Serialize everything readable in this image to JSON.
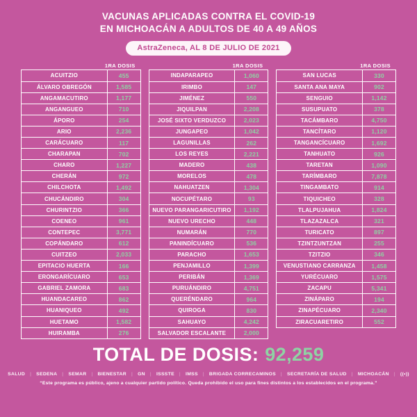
{
  "header": {
    "title_line1_normal": "VACUNAS APLICADAS ",
    "title_line1_strong": "CONTRA EL COVID-19",
    "title_line2": "EN MICHOACÁN A ADULTOS DE 40 A 49 AÑOS",
    "badge": "AstraZeneca, AL 8 DE JULIO DE 2021"
  },
  "columns": [
    {
      "dose_label": "1RA DOSIS",
      "rows": [
        {
          "name": "ACUITZIO",
          "value": "455"
        },
        {
          "name": "ÁLVARO OBREGÓN",
          "value": "1,585"
        },
        {
          "name": "ANGAMACUTIRO",
          "value": "1,177"
        },
        {
          "name": "ANGANGUEO",
          "value": "710"
        },
        {
          "name": "ÁPORO",
          "value": "254"
        },
        {
          "name": "ARIO",
          "value": "2,236"
        },
        {
          "name": "CARÁCUARO",
          "value": "117"
        },
        {
          "name": "CHARAPAN",
          "value": "702"
        },
        {
          "name": "CHARO",
          "value": "1,227"
        },
        {
          "name": "CHERÁN",
          "value": "972"
        },
        {
          "name": "CHILCHOTA",
          "value": "1,492"
        },
        {
          "name": "CHUCÁNDIRO",
          "value": "304"
        },
        {
          "name": "CHURINTZIO",
          "value": "366"
        },
        {
          "name": "COENEO",
          "value": "961"
        },
        {
          "name": "CONTEPEC",
          "value": "3,771"
        },
        {
          "name": "COPÁNDARO",
          "value": "612"
        },
        {
          "name": "CUITZEO",
          "value": "2,033"
        },
        {
          "name": "EPITACIO HUERTA",
          "value": "166"
        },
        {
          "name": "ERONGARÍCUARO",
          "value": "653"
        },
        {
          "name": "GABRIEL ZAMORA",
          "value": "683"
        },
        {
          "name": "HUANDACAREO",
          "value": "862"
        },
        {
          "name": "HUANIQUEO",
          "value": "492"
        },
        {
          "name": "HUETAMO",
          "value": "1,582"
        },
        {
          "name": "HUIRAMBA",
          "value": "276"
        }
      ]
    },
    {
      "dose_label": "1RA DOSIS",
      "rows": [
        {
          "name": "INDAPARAPEO",
          "value": "1,060"
        },
        {
          "name": "IRIMBO",
          "value": "147"
        },
        {
          "name": "JIMÉNEZ",
          "value": "550"
        },
        {
          "name": "JIQUILPAN",
          "value": "2,208"
        },
        {
          "name": "JOSÉ SIXTO VERDUZCO",
          "value": "2,023"
        },
        {
          "name": "JUNGAPEO",
          "value": "1,042"
        },
        {
          "name": "LAGUNILLAS",
          "value": "262"
        },
        {
          "name": "LOS REYES",
          "value": "2,221"
        },
        {
          "name": "MADERO",
          "value": "438"
        },
        {
          "name": "MORELOS",
          "value": "478"
        },
        {
          "name": "NAHUATZEN",
          "value": "1,304"
        },
        {
          "name": "NOCUPÉTARO",
          "value": "93"
        },
        {
          "name": "NUEVO PARANGARICUTIRO",
          "value": "1,192"
        },
        {
          "name": "NUEVO URECHO",
          "value": "448"
        },
        {
          "name": "NUMARÁN",
          "value": "770"
        },
        {
          "name": "PANINDÍCUARO",
          "value": "536"
        },
        {
          "name": "PARACHO",
          "value": "1,653"
        },
        {
          "name": "PENJAMILLO",
          "value": "1,399"
        },
        {
          "name": "PERIBÁN",
          "value": "1,369"
        },
        {
          "name": "PURUÁNDIRO",
          "value": "4,751"
        },
        {
          "name": "QUERÉNDARO",
          "value": "964"
        },
        {
          "name": "QUIROGA",
          "value": "830"
        },
        {
          "name": "SAHUAYO",
          "value": "4,242"
        },
        {
          "name": "SALVADOR ESCALANTE",
          "value": "2,000"
        }
      ]
    },
    {
      "dose_label": "1RA DOSIS",
      "rows": [
        {
          "name": "SAN LUCAS",
          "value": "330"
        },
        {
          "name": "SANTA ANA MAYA",
          "value": "902"
        },
        {
          "name": "SENGUIO",
          "value": "1,142"
        },
        {
          "name": "SUSUPUATO",
          "value": "378"
        },
        {
          "name": "TACÁMBARO",
          "value": "4,750"
        },
        {
          "name": "TANCÍTARO",
          "value": "1,120"
        },
        {
          "name": "TANGANCÍCUARO",
          "value": "1,692"
        },
        {
          "name": "TANHUATO",
          "value": "926"
        },
        {
          "name": "TARETAN",
          "value": "1,090"
        },
        {
          "name": "TARÍMBARO",
          "value": "7,878"
        },
        {
          "name": "TINGAMBATO",
          "value": "914"
        },
        {
          "name": "TIQUICHEO",
          "value": "328"
        },
        {
          "name": "TLALPUJAHUA",
          "value": "1,824"
        },
        {
          "name": "TLAZAZALCA",
          "value": "321"
        },
        {
          "name": "TURICATO",
          "value": "897"
        },
        {
          "name": "TZINTZUNTZAN",
          "value": "255"
        },
        {
          "name": "TZITZIO",
          "value": "346"
        },
        {
          "name": "VENUSTIANO CARRANZA",
          "value": "1,458"
        },
        {
          "name": "YURÉCUARO",
          "value": "1,575"
        },
        {
          "name": "ZACAPU",
          "value": "5,341"
        },
        {
          "name": "ZINÁPARO",
          "value": "194"
        },
        {
          "name": "ZINAPÉCUARO",
          "value": "2,340"
        },
        {
          "name": "ZIRACUARETIRO",
          "value": "552"
        }
      ]
    }
  ],
  "total": {
    "label": "TOTAL DE DOSIS:",
    "value": "92,259"
  },
  "footer": {
    "logos": [
      "SALUD",
      "SEDENA",
      "SEMAR",
      "BIENESTAR",
      "GN",
      "ISSSTE",
      "IMSS",
      "BRIGADA CORRECAMINOS",
      "SECRETARÍA DE SALUD",
      "MICHOACÁN",
      "((•))"
    ],
    "disclaimer": "“Este programa es público, ajeno a cualquier partido político. Queda prohibido el uso para fines distintos a los establecidos en el programa.”"
  },
  "colors": {
    "background": "#c4579e",
    "value_green": "#8fd3a4",
    "badge_bg": "#fdf4f9",
    "badge_text": "#c0458f",
    "border_white": "#ffffff"
  },
  "chart_data": {
    "type": "table",
    "title": "VACUNAS APLICADAS CONTRA EL COVID-19 EN MICHOACÁN A ADULTOS DE 40 A 49 AÑOS",
    "subtitle": "AstraZeneca, AL 8 DE JULIO DE 2021",
    "value_column": "1RA DOSIS",
    "rows": [
      [
        "ACUITZIO",
        455
      ],
      [
        "ÁLVARO OBREGÓN",
        1585
      ],
      [
        "ANGAMACUTIRO",
        1177
      ],
      [
        "ANGANGUEO",
        710
      ],
      [
        "ÁPORO",
        254
      ],
      [
        "ARIO",
        2236
      ],
      [
        "CARÁCUARO",
        117
      ],
      [
        "CHARAPAN",
        702
      ],
      [
        "CHARO",
        1227
      ],
      [
        "CHERÁN",
        972
      ],
      [
        "CHILCHOTA",
        1492
      ],
      [
        "CHUCÁNDIRO",
        304
      ],
      [
        "CHURINTZIO",
        366
      ],
      [
        "COENEO",
        961
      ],
      [
        "CONTEPEC",
        3771
      ],
      [
        "COPÁNDARO",
        612
      ],
      [
        "CUITZEO",
        2033
      ],
      [
        "EPITACIO HUERTA",
        166
      ],
      [
        "ERONGARÍCUARO",
        653
      ],
      [
        "GABRIEL ZAMORA",
        683
      ],
      [
        "HUANDACAREO",
        862
      ],
      [
        "HUANIQUEO",
        492
      ],
      [
        "HUETAMO",
        1582
      ],
      [
        "HUIRAMBA",
        276
      ],
      [
        "INDAPARAPEO",
        1060
      ],
      [
        "IRIMBO",
        147
      ],
      [
        "JIMÉNEZ",
        550
      ],
      [
        "JIQUILPAN",
        2208
      ],
      [
        "JOSÉ SIXTO VERDUZCO",
        2023
      ],
      [
        "JUNGAPEO",
        1042
      ],
      [
        "LAGUNILLAS",
        262
      ],
      [
        "LOS REYES",
        2221
      ],
      [
        "MADERO",
        438
      ],
      [
        "MORELOS",
        478
      ],
      [
        "NAHUATZEN",
        1304
      ],
      [
        "NOCUPÉTARO",
        93
      ],
      [
        "NUEVO PARANGARICUTIRO",
        1192
      ],
      [
        "NUEVO URECHO",
        448
      ],
      [
        "NUMARÁN",
        770
      ],
      [
        "PANINDÍCUARO",
        536
      ],
      [
        "PARACHO",
        1653
      ],
      [
        "PENJAMILLO",
        1399
      ],
      [
        "PERIBÁN",
        1369
      ],
      [
        "PURUÁNDIRO",
        4751
      ],
      [
        "QUERÉNDARO",
        964
      ],
      [
        "QUIROGA",
        830
      ],
      [
        "SAHUAYO",
        4242
      ],
      [
        "SALVADOR ESCALANTE",
        2000
      ],
      [
        "SAN LUCAS",
        330
      ],
      [
        "SANTA ANA MAYA",
        902
      ],
      [
        "SENGUIO",
        1142
      ],
      [
        "SUSUPUATO",
        378
      ],
      [
        "TACÁMBARO",
        4750
      ],
      [
        "TANCÍTARO",
        1120
      ],
      [
        "TANGANCÍCUARO",
        1692
      ],
      [
        "TANHUATO",
        926
      ],
      [
        "TARETAN",
        1090
      ],
      [
        "TARÍMBARO",
        7878
      ],
      [
        "TINGAMBATO",
        914
      ],
      [
        "TIQUICHEO",
        328
      ],
      [
        "TLALPUJAHUA",
        1824
      ],
      [
        "TLAZAZALCA",
        321
      ],
      [
        "TURICATO",
        897
      ],
      [
        "TZINTZUNTZAN",
        255
      ],
      [
        "TZITZIO",
        346
      ],
      [
        "VENUSTIANO CARRANZA",
        1458
      ],
      [
        "YURÉCUARO",
        1575
      ],
      [
        "ZACAPU",
        5341
      ],
      [
        "ZINÁPARO",
        194
      ],
      [
        "ZINAPÉCUARO",
        2340
      ],
      [
        "ZIRACUARETIRO",
        552
      ]
    ],
    "total": 92259
  }
}
